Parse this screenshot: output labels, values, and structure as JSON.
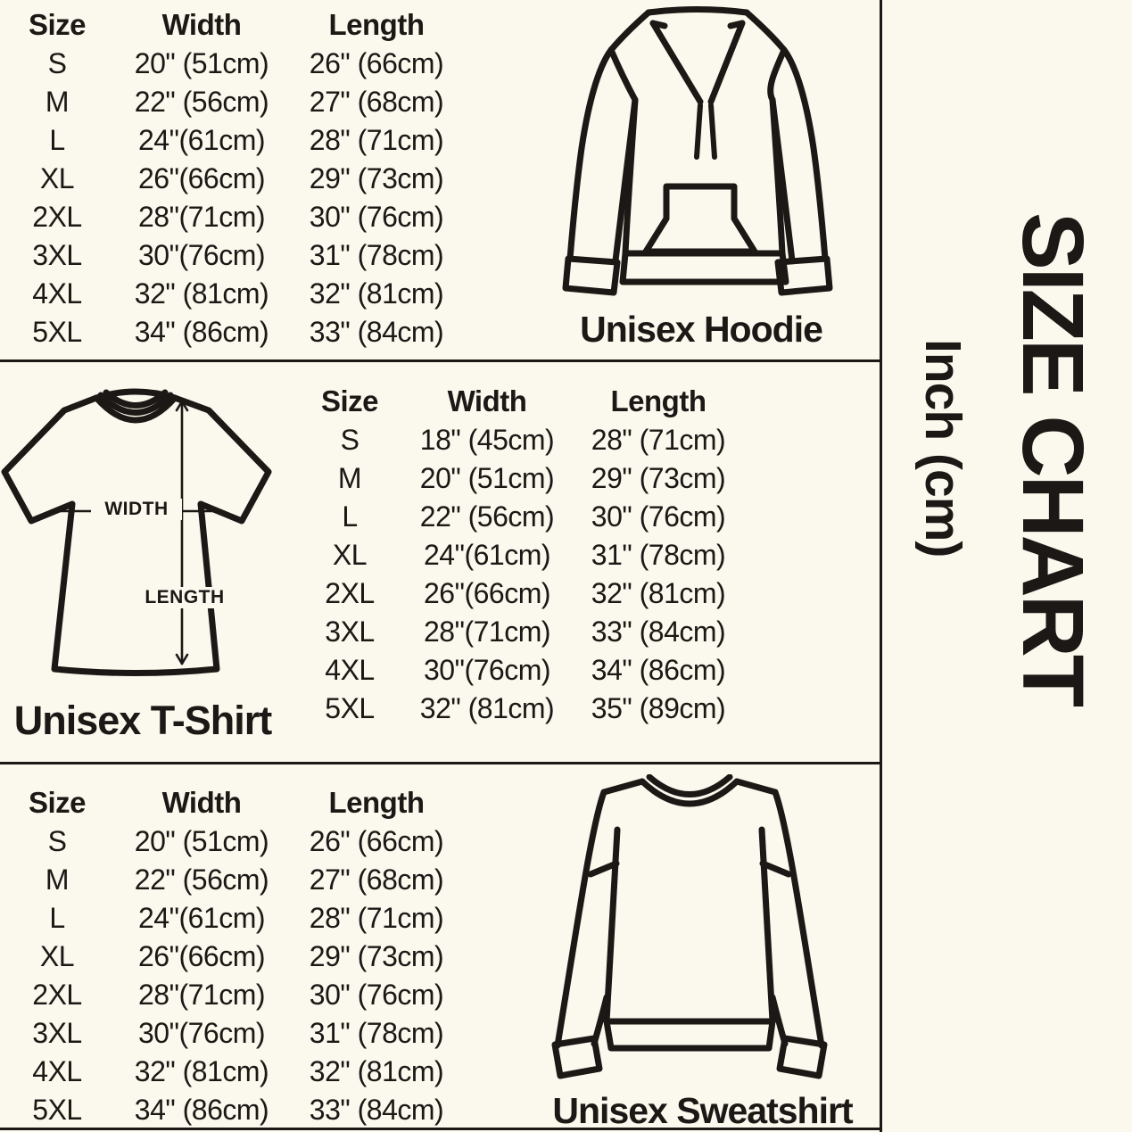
{
  "canvas": {
    "bg": "#fbf8ee",
    "ink": "#1b1815"
  },
  "side_panel": {
    "title": "SIZE CHART",
    "subtitle": "Inch (cm)"
  },
  "sections": [
    {
      "id": "hoodie",
      "label": "Unisex Hoodie",
      "table": {
        "headers": [
          "Size",
          "Width",
          "Length"
        ],
        "rows": [
          [
            "S",
            "20\" (51cm)",
            "26\" (66cm)"
          ],
          [
            "M",
            "22\" (56cm)",
            "27\" (68cm)"
          ],
          [
            "L",
            "24\"(61cm)",
            "28\" (71cm)"
          ],
          [
            "XL",
            "26\"(66cm)",
            "29\" (73cm)"
          ],
          [
            "2XL",
            "28\"(71cm)",
            "30\" (76cm)"
          ],
          [
            "3XL",
            "30\"(76cm)",
            "31\" (78cm)"
          ],
          [
            "4XL",
            "32\" (81cm)",
            "32\" (81cm)"
          ],
          [
            "5XL",
            "34\" (86cm)",
            "33\" (84cm)"
          ]
        ]
      }
    },
    {
      "id": "tshirt",
      "label": "Unisex T-Shirt",
      "diagram": {
        "width_label": "WIDTH",
        "length_label": "LENGTH"
      },
      "table": {
        "headers": [
          "Size",
          "Width",
          "Length"
        ],
        "rows": [
          [
            "S",
            "18\" (45cm)",
            "28\" (71cm)"
          ],
          [
            "M",
            "20\" (51cm)",
            "29\" (73cm)"
          ],
          [
            "L",
            "22\" (56cm)",
            "30\" (76cm)"
          ],
          [
            "XL",
            "24\"(61cm)",
            "31\" (78cm)"
          ],
          [
            "2XL",
            "26\"(66cm)",
            "32\" (81cm)"
          ],
          [
            "3XL",
            "28\"(71cm)",
            "33\" (84cm)"
          ],
          [
            "4XL",
            "30\"(76cm)",
            "34\" (86cm)"
          ],
          [
            "5XL",
            "32\" (81cm)",
            "35\" (89cm)"
          ]
        ]
      }
    },
    {
      "id": "sweatshirt",
      "label": "Unisex Sweatshirt",
      "table": {
        "headers": [
          "Size",
          "Width",
          "Length"
        ],
        "rows": [
          [
            "S",
            "20\" (51cm)",
            "26\" (66cm)"
          ],
          [
            "M",
            "22\" (56cm)",
            "27\" (68cm)"
          ],
          [
            "L",
            "24\"(61cm)",
            "28\" (71cm)"
          ],
          [
            "XL",
            "26\"(66cm)",
            "29\" (73cm)"
          ],
          [
            "2XL",
            "28\"(71cm)",
            "30\" (76cm)"
          ],
          [
            "3XL",
            "30\"(76cm)",
            "31\" (78cm)"
          ],
          [
            "4XL",
            "32\" (81cm)",
            "32\" (81cm)"
          ],
          [
            "5XL",
            "34\" (86cm)",
            "33\" (84cm)"
          ]
        ]
      }
    }
  ]
}
